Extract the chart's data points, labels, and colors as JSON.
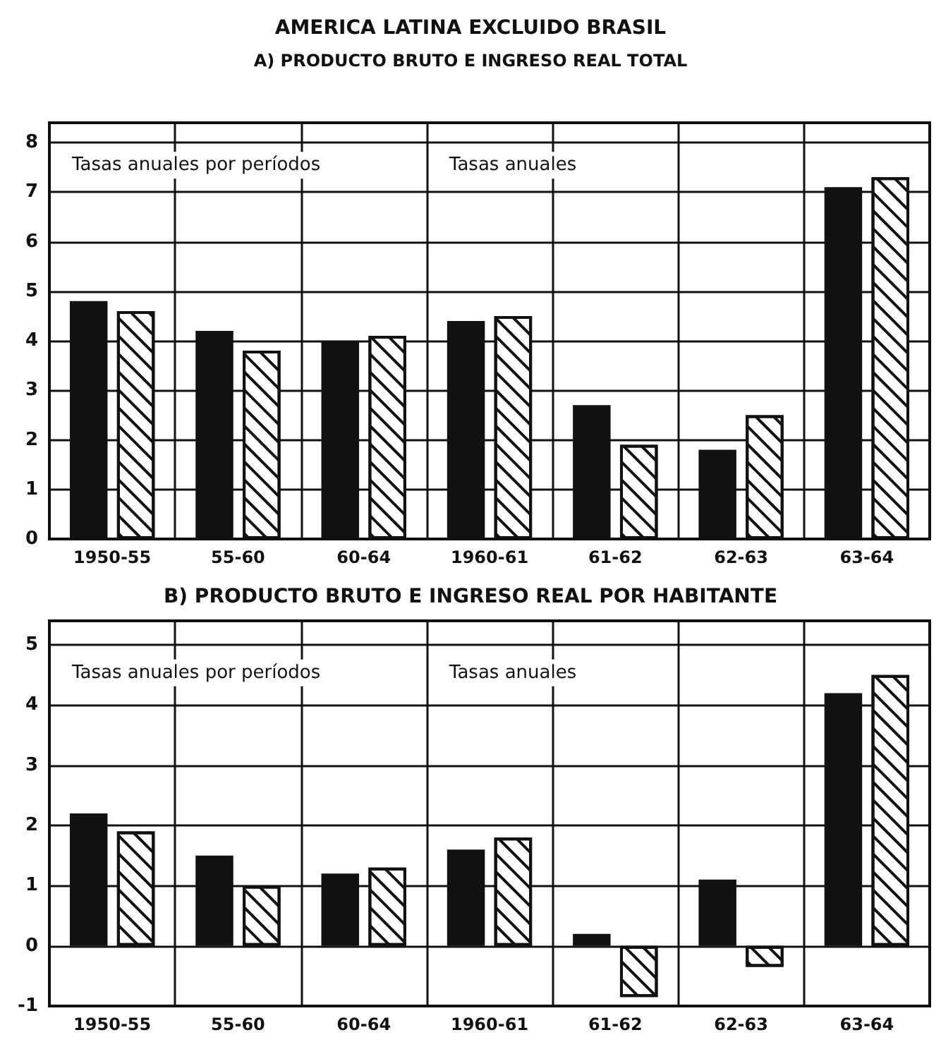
{
  "chart_data": [
    {
      "type": "bar",
      "title": "AMERICA LATINA EXCLUIDO BRASIL",
      "subtitle": "A) PRODUCTO BRUTO E INGRESO REAL TOTAL",
      "categories": [
        "1950-55",
        "55-60",
        "60-64",
        "1960-61",
        "61-62",
        "62-63",
        "63-64"
      ],
      "series": [
        {
          "color": "#111111",
          "values": [
            4.8,
            4.2,
            4.0,
            4.4,
            2.7,
            1.8,
            7.1
          ]
        },
        {
          "color": "#ffffff",
          "values": [
            4.6,
            3.8,
            4.1,
            4.5,
            1.9,
            2.5,
            7.3
          ]
        }
      ],
      "ylim": [
        0,
        8.4
      ],
      "yticks": [
        0,
        1,
        2,
        3,
        4,
        5,
        6,
        7,
        8
      ],
      "grid": true,
      "annotations": [
        "Tasas anuales por períodos",
        "Tasas anuales"
      ]
    },
    {
      "type": "bar",
      "title": "B) PRODUCTO BRUTO E INGRESO REAL POR HABITANTE",
      "categories": [
        "1950-55",
        "55-60",
        "60-64",
        "1960-61",
        "61-62",
        "62-63",
        "63-64"
      ],
      "series": [
        {
          "color": "#111111",
          "values": [
            2.2,
            1.5,
            1.2,
            1.6,
            0.2,
            1.1,
            4.2
          ]
        },
        {
          "color": "#ffffff",
          "values": [
            1.9,
            1.0,
            1.3,
            1.8,
            -0.85,
            -0.35,
            4.5
          ]
        }
      ],
      "ylim": [
        -1,
        5.4
      ],
      "yticks": [
        -1,
        0,
        1,
        2,
        3,
        4,
        5
      ],
      "grid": true,
      "annotations": [
        "Tasas anuales por períodos",
        "Tasas anuales"
      ]
    }
  ]
}
